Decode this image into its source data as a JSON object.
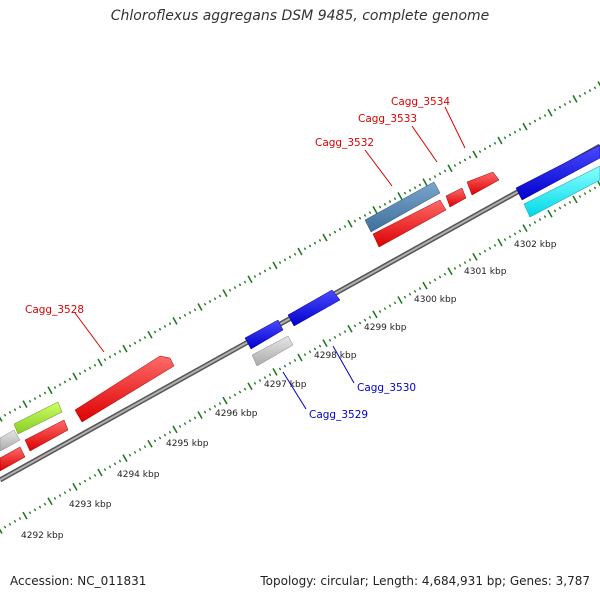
{
  "title": "Chloroflexus aggregans DSM 9485, complete genome",
  "footer": {
    "accession": "Accession: NC_011831",
    "stats": "Topology: circular; Length: 4,684,931 bp; Genes: 3,787"
  },
  "colors": {
    "forward_label": "#dd0000",
    "reverse_label": "#0000cc",
    "backbone": "#888888",
    "ticks": "#227722"
  },
  "kbp_labels": [
    "4292 kbp",
    "4293 kbp",
    "4294 kbp",
    "4295 kbp",
    "4296 kbp",
    "4297 kbp",
    "4298 kbp",
    "4299 kbp",
    "4300 kbp",
    "4301 kbp",
    "4302 kbp"
  ],
  "gene_labels": {
    "cagg_3528": "Cagg_3528",
    "cagg_3529": "Cagg_3529",
    "cagg_3530": "Cagg_3530",
    "cagg_3532": "Cagg_3532",
    "cagg_3533": "Cagg_3533",
    "cagg_3534": "Cagg_3534"
  }
}
